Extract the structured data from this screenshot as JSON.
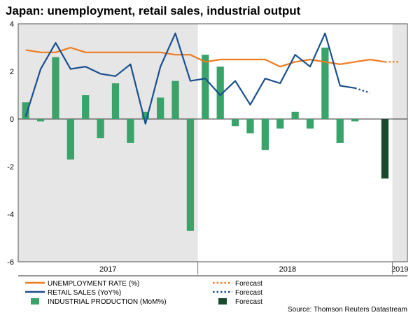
{
  "chart_data": {
    "type": "bar",
    "title": "Japan: unemployment, retail sales, industrial output",
    "source": "Source: Thomson Reuters Datastream",
    "ylim": [
      -6,
      4
    ],
    "y_ticks": [
      "4",
      "2",
      "0",
      "-2",
      "-4",
      "-6"
    ],
    "y_tick_values": [
      4,
      2,
      0,
      -2,
      -4,
      -6
    ],
    "year_labels": [
      {
        "label": "2017",
        "center_index": 5.5
      },
      {
        "label": "2018",
        "center_index": 17.5
      },
      {
        "label": "2019",
        "center_index": 25
      }
    ],
    "shaded_bands": [
      {
        "from_index": -0.5,
        "to_index": 11.5
      },
      {
        "from_index": 24.5,
        "to_index": 25.5
      }
    ],
    "x_count": 26,
    "series": [
      {
        "name": "UNEMPLOYMENT RATE (%)",
        "kind": "line",
        "color": "#f07a1e",
        "values": [
          2.9,
          2.8,
          2.8,
          3.0,
          2.8,
          2.8,
          2.8,
          2.8,
          2.8,
          2.8,
          2.7,
          2.7,
          2.4,
          2.5,
          2.5,
          2.5,
          2.5,
          2.2,
          2.4,
          2.5,
          2.4,
          2.3,
          2.4,
          2.5,
          2.4,
          null
        ],
        "forecast": [
          null,
          null,
          null,
          null,
          null,
          null,
          null,
          null,
          null,
          null,
          null,
          null,
          null,
          null,
          null,
          null,
          null,
          null,
          null,
          null,
          null,
          null,
          null,
          null,
          2.4,
          2.4
        ],
        "forecast_label": "Forecast"
      },
      {
        "name": "RETAIL SALES (YoY%)",
        "kind": "line",
        "color": "#1a4f8f",
        "values": [
          0.1,
          2.1,
          3.2,
          2.1,
          2.2,
          1.9,
          1.8,
          2.3,
          -0.2,
          2.2,
          3.6,
          1.6,
          1.7,
          1.0,
          1.6,
          0.6,
          1.7,
          1.5,
          2.7,
          2.2,
          3.6,
          1.4,
          1.3,
          null,
          null,
          null
        ],
        "forecast": [
          null,
          null,
          null,
          null,
          null,
          null,
          null,
          null,
          null,
          null,
          null,
          null,
          null,
          null,
          null,
          null,
          null,
          null,
          null,
          null,
          null,
          null,
          1.3,
          1.1,
          null,
          null
        ],
        "forecast_label": "Forecast"
      },
      {
        "name": "INDUSTRIAL PRODUCTION (MoM%)",
        "kind": "bar",
        "color": "#3aa36a",
        "values": [
          0.7,
          -0.1,
          2.6,
          -1.7,
          1.0,
          -0.8,
          1.5,
          -1.0,
          0.3,
          0.9,
          1.6,
          -4.7,
          2.7,
          2.2,
          -0.3,
          -0.6,
          -1.3,
          -0.4,
          0.3,
          -0.4,
          3.0,
          -1.0,
          -0.1,
          null,
          null,
          null
        ],
        "forecast_values": [
          null,
          null,
          null,
          null,
          null,
          null,
          null,
          null,
          null,
          null,
          null,
          null,
          null,
          null,
          null,
          null,
          null,
          null,
          null,
          null,
          null,
          null,
          null,
          null,
          -2.5,
          null
        ],
        "forecast_color": "#1a4a2e",
        "forecast_label": "Forecast"
      }
    ]
  }
}
